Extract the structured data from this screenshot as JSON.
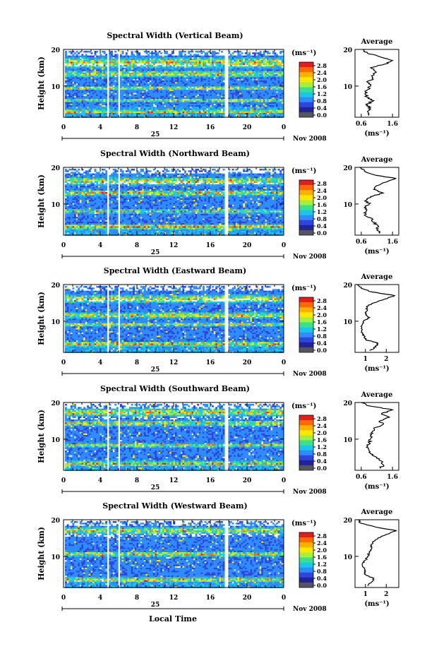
{
  "figure": {
    "xlabel": "Local Time",
    "date_label": "Nov 2008",
    "day_label": "25",
    "ylabel": "Height (km)",
    "colorbar_unit": "(ms⁻¹)",
    "average_title": "Average",
    "average_xlabel": "(ms⁻¹)",
    "colorbar_ticks": [
      "2.8",
      "2.4",
      "2.0",
      "1.6",
      "1.2",
      "0.8",
      "0.4",
      "0.0"
    ],
    "colorbar_colors": [
      "#e21e1e",
      "#ff6a00",
      "#ffb000",
      "#ffe800",
      "#a8ee3a",
      "#3ce08a",
      "#18c8e8",
      "#2f8cff",
      "#2d46dc",
      "#22229a",
      "#555560"
    ]
  },
  "chart_data": [
    {
      "type": "heatmap",
      "title": "Spectral Width (Vertical Beam)",
      "x_ticks": [
        "0",
        "4",
        "8",
        "12",
        "16",
        "20",
        "0"
      ],
      "y_ticks": [
        "20",
        "10"
      ],
      "xlim": [
        0,
        24
      ],
      "ylim": [
        1.5,
        20
      ],
      "gaps": [
        [
          4.6,
          4.9
        ],
        [
          5.8,
          6.1
        ],
        [
          17.5,
          17.8
        ]
      ],
      "layers": [
        [
          16.5,
          1.7
        ],
        [
          13.5,
          1.0
        ],
        [
          9.6,
          0.6
        ],
        [
          6.3,
          0.5
        ],
        [
          3.2,
          0.5
        ]
      ],
      "average": {
        "x_ticks": [
          "0.6",
          "1.6"
        ],
        "xlim": [
          0.4,
          1.8
        ],
        "y_ticks": [
          "20",
          "10"
        ],
        "height": [
          2,
          3,
          4,
          5,
          6,
          7,
          8,
          9,
          10,
          11,
          12,
          13,
          14,
          15,
          16,
          17,
          18,
          19,
          20
        ],
        "values": [
          0.85,
          0.8,
          0.9,
          0.75,
          1.0,
          0.78,
          0.72,
          0.8,
          0.9,
          0.8,
          0.95,
          1.0,
          1.05,
          0.9,
          1.35,
          1.6,
          1.2,
          0.8,
          0.65
        ]
      }
    },
    {
      "type": "heatmap",
      "title": "Spectral Width (Northward Beam)",
      "x_ticks": [
        "0",
        "4",
        "8",
        "12",
        "16",
        "20",
        "0"
      ],
      "y_ticks": [
        "20",
        "10"
      ],
      "xlim": [
        0,
        24
      ],
      "ylim": [
        1.5,
        20
      ],
      "gaps": [
        [
          4.6,
          4.9
        ],
        [
          5.8,
          6.1
        ],
        [
          17.5,
          17.8
        ]
      ],
      "layers": [
        [
          16.4,
          1.2
        ],
        [
          13.2,
          0.9
        ],
        [
          8.2,
          0.6
        ],
        [
          4.0,
          0.8
        ]
      ],
      "average": {
        "x_ticks": [
          "0.6",
          "1.6"
        ],
        "xlim": [
          0.4,
          1.8
        ],
        "y_ticks": [
          "20",
          "10"
        ],
        "height": [
          2,
          3,
          4,
          5,
          6,
          7,
          8,
          9,
          10,
          11,
          12,
          13,
          14,
          15,
          16,
          17,
          18,
          19,
          20
        ],
        "values": [
          1.2,
          1.1,
          1.15,
          1.0,
          0.95,
          0.7,
          0.75,
          0.7,
          0.85,
          0.75,
          0.9,
          1.3,
          1.0,
          1.1,
          1.4,
          1.7,
          1.0,
          0.7,
          0.55
        ]
      }
    },
    {
      "type": "heatmap",
      "title": "Spectral Width (Eastward Beam)",
      "x_ticks": [
        "0",
        "4",
        "8",
        "12",
        "16",
        "20",
        "0"
      ],
      "y_ticks": [
        "20",
        "10"
      ],
      "xlim": [
        0,
        24
      ],
      "ylim": [
        1.5,
        20
      ],
      "gaps": [
        [
          4.6,
          4.9
        ],
        [
          5.8,
          6.1
        ],
        [
          17.5,
          17.8
        ]
      ],
      "layers": [
        [
          16.3,
          1.3
        ],
        [
          11.8,
          0.9
        ],
        [
          9.3,
          0.6
        ],
        [
          4.0,
          0.7
        ]
      ],
      "average": {
        "x_ticks": [
          "1",
          "2"
        ],
        "xlim": [
          0.5,
          2.6
        ],
        "y_ticks": [
          "20",
          "10"
        ],
        "height": [
          2,
          3,
          4,
          5,
          6,
          7,
          8,
          9,
          10,
          11,
          12,
          13,
          14,
          15,
          16,
          17,
          18,
          19,
          20
        ],
        "values": [
          1.2,
          1.5,
          1.6,
          1.0,
          0.95,
          0.8,
          0.8,
          0.85,
          0.9,
          1.2,
          1.0,
          1.1,
          1.05,
          1.4,
          1.9,
          2.4,
          1.3,
          0.8,
          0.6
        ]
      }
    },
    {
      "type": "heatmap",
      "title": "Spectral Width (Southward Beam)",
      "x_ticks": [
        "0",
        "4",
        "8",
        "12",
        "16",
        "20",
        "0"
      ],
      "y_ticks": [
        "20",
        "10"
      ],
      "xlim": [
        0,
        24
      ],
      "ylim": [
        1.5,
        20
      ],
      "gaps": [
        [
          4.6,
          4.9
        ],
        [
          5.8,
          6.1
        ],
        [
          17.5,
          17.8
        ]
      ],
      "layers": [
        [
          17.5,
          1.2
        ],
        [
          14.5,
          0.9
        ],
        [
          8.5,
          0.6
        ],
        [
          3.5,
          0.7
        ]
      ],
      "average": {
        "x_ticks": [
          "0.6",
          "1.6"
        ],
        "xlim": [
          0.4,
          1.8
        ],
        "y_ticks": [
          "20",
          "10"
        ],
        "height": [
          2,
          3,
          4,
          5,
          6,
          7,
          8,
          9,
          10,
          11,
          12,
          13,
          14,
          15,
          16,
          17,
          18,
          19,
          20
        ],
        "values": [
          1.2,
          1.3,
          1.25,
          1.1,
          0.9,
          0.85,
          0.8,
          0.85,
          0.9,
          0.9,
          0.95,
          1.0,
          1.3,
          1.2,
          1.5,
          1.25,
          1.6,
          0.9,
          0.6
        ]
      }
    },
    {
      "type": "heatmap",
      "title": "Spectral Width (Westward Beam)",
      "x_ticks": [
        "0",
        "4",
        "8",
        "12",
        "16",
        "20",
        "0"
      ],
      "y_ticks": [
        "20",
        "10"
      ],
      "xlim": [
        0,
        24
      ],
      "ylim": [
        1.5,
        20
      ],
      "gaps": [
        [
          4.6,
          4.9
        ],
        [
          5.8,
          6.1
        ],
        [
          17.5,
          17.8
        ]
      ],
      "layers": [
        [
          17.2,
          1.1
        ],
        [
          10.8,
          0.8
        ],
        [
          3.8,
          0.7
        ]
      ],
      "average": {
        "x_ticks": [
          "1",
          "2"
        ],
        "xlim": [
          0.5,
          2.6
        ],
        "y_ticks": [
          "20",
          "10"
        ],
        "height": [
          2,
          3,
          4,
          5,
          6,
          7,
          8,
          9,
          10,
          11,
          12,
          13,
          14,
          15,
          16,
          17,
          18,
          19,
          20
        ],
        "values": [
          1.1,
          1.3,
          1.4,
          1.0,
          0.95,
          0.9,
          0.85,
          1.0,
          1.1,
          1.2,
          1.3,
          1.25,
          1.35,
          1.6,
          2.0,
          2.5,
          1.5,
          0.8,
          0.65
        ]
      }
    }
  ]
}
